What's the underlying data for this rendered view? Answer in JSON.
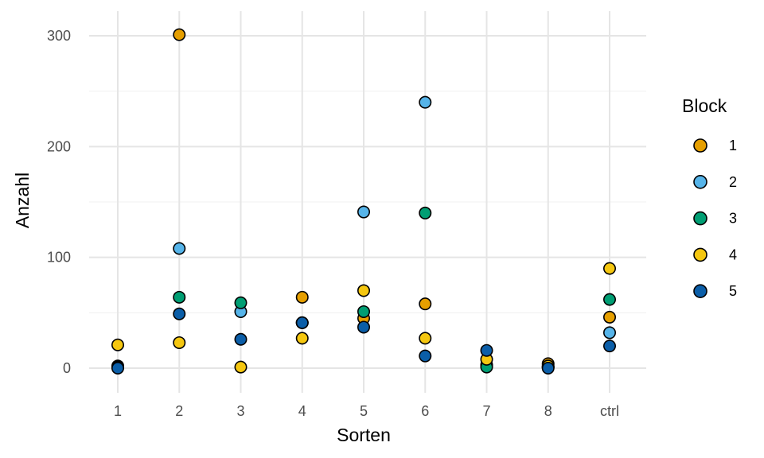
{
  "chart_data": {
    "type": "scatter",
    "title": "",
    "xlabel": "Sorten",
    "ylabel": "Anzahl",
    "categories": [
      "1",
      "2",
      "3",
      "4",
      "5",
      "6",
      "7",
      "8",
      "ctrl"
    ],
    "ylim": [
      -22,
      322
    ],
    "yticks": [
      0,
      100,
      200,
      300
    ],
    "grid": true,
    "legend": {
      "title": "Block",
      "placement": "right"
    },
    "series": [
      {
        "name": "1",
        "color": "#E69F00",
        "values": [
          2,
          301,
          null,
          64,
          45,
          58,
          2,
          4,
          46
        ]
      },
      {
        "name": "2",
        "color": "#56B4E9",
        "values": [
          1,
          108,
          51,
          41,
          141,
          240,
          3,
          1,
          32
        ]
      },
      {
        "name": "3",
        "color": "#009E73",
        "values": [
          1,
          64,
          59,
          41,
          51,
          140,
          1,
          1,
          62
        ]
      },
      {
        "name": "4",
        "color": "#F5C710",
        "values": [
          21,
          23,
          1,
          27,
          70,
          27,
          8,
          2,
          90
        ]
      },
      {
        "name": "5",
        "color": "#0B5EA8",
        "values": [
          0,
          49,
          26,
          41,
          37,
          11,
          16,
          0,
          20
        ]
      }
    ]
  }
}
